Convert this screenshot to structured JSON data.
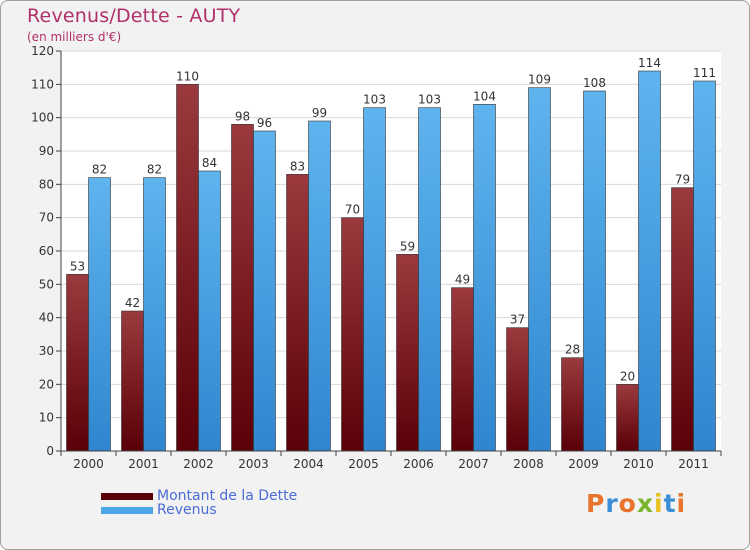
{
  "chart_data": {
    "type": "bar",
    "title": "Revenus/Dette - AUTY",
    "subtitle": "(en milliers d'€)",
    "categories": [
      "2000",
      "2001",
      "2002",
      "2003",
      "2004",
      "2005",
      "2006",
      "2007",
      "2008",
      "2009",
      "2010",
      "2011"
    ],
    "series": [
      {
        "name": "Montant de la Dette",
        "color": "#7a1a1f",
        "values": [
          53,
          42,
          110,
          98,
          83,
          70,
          59,
          49,
          37,
          28,
          20,
          79
        ]
      },
      {
        "name": "Revenus",
        "color": "#4da6e6",
        "values": [
          82,
          82,
          84,
          96,
          99,
          103,
          103,
          104,
          109,
          108,
          114,
          111
        ]
      }
    ],
    "ylim": [
      0,
      120
    ],
    "yticks": [
      0,
      10,
      20,
      30,
      40,
      50,
      60,
      70,
      80,
      90,
      100,
      110,
      120
    ],
    "grid": true,
    "legend_position": "bottom-left"
  },
  "logo": {
    "text": "Proxiti",
    "colors": [
      "#e8732a",
      "#3a8fd8",
      "#e8732a",
      "#7ab530",
      "#e8c020",
      "#3a8fd8",
      "#e8732a"
    ]
  },
  "colors": {
    "title": "#b0306a",
    "grid": "#d8d8d8",
    "axis": "#444444",
    "plot_bg": "#ffffff"
  }
}
